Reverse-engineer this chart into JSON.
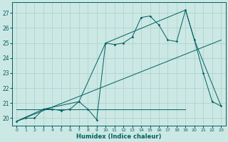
{
  "xlabel": "Humidex (Indice chaleur)",
  "bg_color": "#cce8e4",
  "line_color": "#006060",
  "grid_color": "#aacfcb",
  "xlim": [
    -0.5,
    23.5
  ],
  "ylim": [
    19.5,
    27.7
  ],
  "yticks": [
    20,
    21,
    22,
    23,
    24,
    25,
    26,
    27
  ],
  "xticks": [
    0,
    1,
    2,
    3,
    4,
    5,
    6,
    7,
    8,
    9,
    10,
    11,
    12,
    13,
    14,
    15,
    16,
    17,
    18,
    19,
    20,
    21,
    22,
    23
  ],
  "series_main": [
    [
      0,
      19.8
    ],
    [
      1,
      20.0
    ],
    [
      2,
      20.0
    ],
    [
      3,
      20.6
    ],
    [
      4,
      20.6
    ],
    [
      5,
      20.5
    ],
    [
      6,
      20.6
    ],
    [
      7,
      21.1
    ],
    [
      8,
      20.6
    ],
    [
      9,
      19.9
    ],
    [
      10,
      25.0
    ],
    [
      11,
      24.9
    ],
    [
      12,
      25.0
    ],
    [
      13,
      25.4
    ],
    [
      14,
      26.7
    ],
    [
      15,
      26.8
    ],
    [
      16,
      26.2
    ],
    [
      17,
      25.2
    ],
    [
      18,
      25.1
    ],
    [
      19,
      27.2
    ],
    [
      20,
      25.2
    ],
    [
      21,
      23.0
    ],
    [
      22,
      21.1
    ],
    [
      23,
      20.8
    ]
  ],
  "series_envelope": [
    [
      0,
      19.8
    ],
    [
      3,
      20.6
    ],
    [
      7,
      21.1
    ],
    [
      10,
      25.0
    ],
    [
      19,
      27.2
    ],
    [
      20,
      25.2
    ],
    [
      23,
      20.8
    ]
  ],
  "series_diagonal": [
    [
      0,
      19.8
    ],
    [
      23,
      25.2
    ]
  ],
  "series_flat": [
    [
      0,
      20.6
    ],
    [
      19,
      20.6
    ]
  ]
}
